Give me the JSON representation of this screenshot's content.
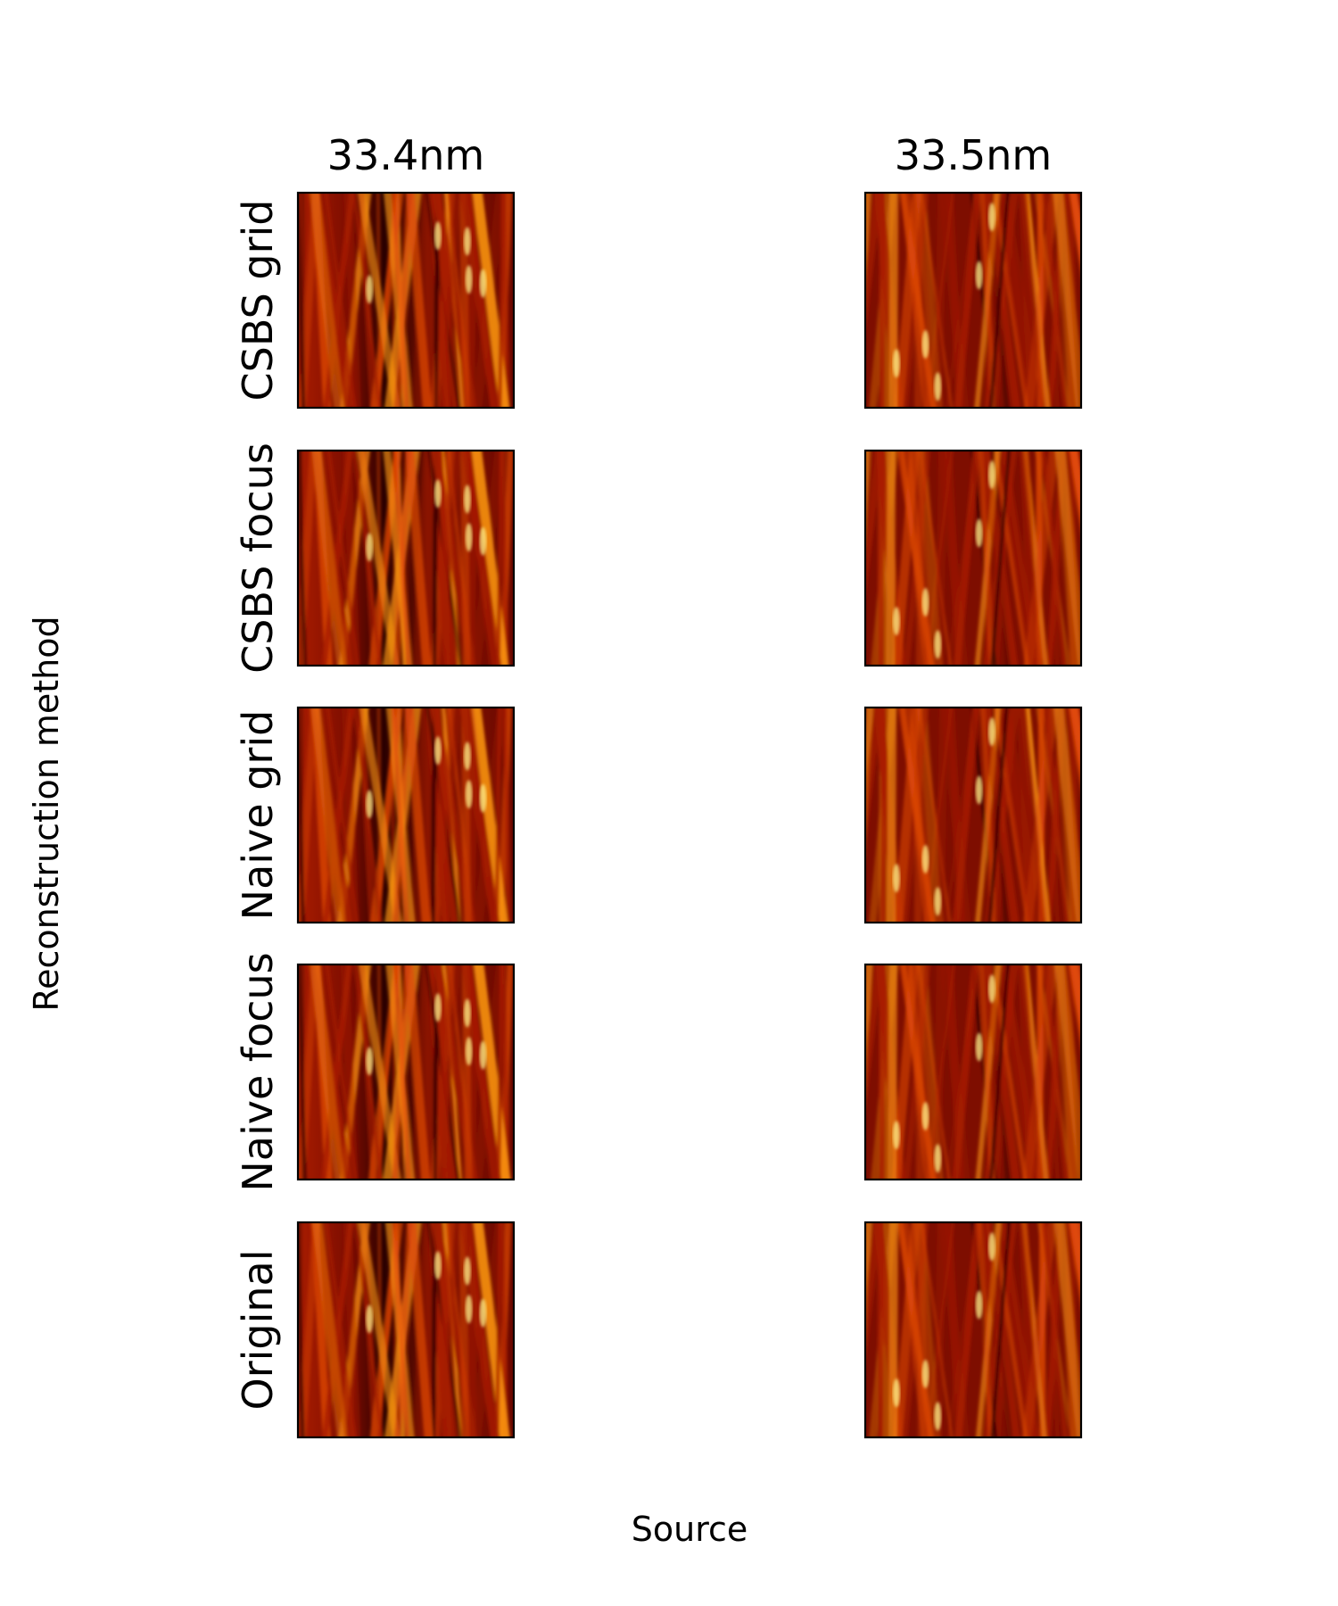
{
  "chart_data": {
    "type": "heatmap",
    "xlabel": "Source",
    "ylabel": "Reconstruction method",
    "columns": [
      "33.4nm",
      "33.5nm"
    ],
    "rows": [
      "CSBS grid",
      "CSBS focus",
      "Naive grid",
      "Naive focus",
      "Original"
    ],
    "colormap": "red-orange-yellow (hot)",
    "axis_ticks": "none",
    "colors": {
      "dark": "#2a0000",
      "mid": "#a81c00",
      "bright": "#ff9a10",
      "peak": "#fff08a"
    }
  }
}
